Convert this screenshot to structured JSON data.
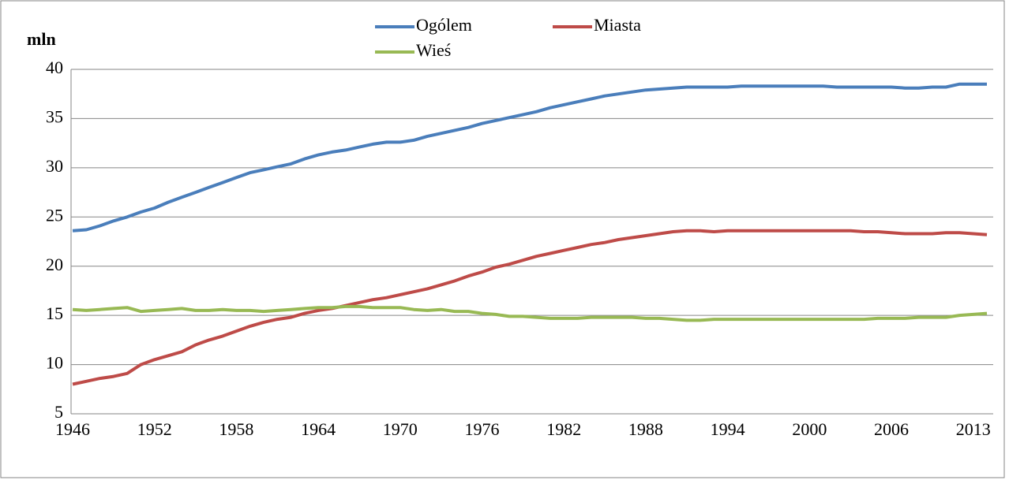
{
  "chart_data": {
    "type": "line",
    "ylabel": "mln",
    "legend": "top",
    "grid": true,
    "categories": [
      "1946",
      null,
      null,
      null,
      null,
      null,
      "1952",
      null,
      null,
      null,
      null,
      null,
      "1958",
      null,
      null,
      null,
      null,
      null,
      "1964",
      null,
      null,
      null,
      null,
      null,
      "1970",
      null,
      null,
      null,
      null,
      null,
      "1976",
      null,
      null,
      null,
      null,
      null,
      "1982",
      null,
      null,
      null,
      null,
      null,
      "1988",
      null,
      null,
      null,
      null,
      null,
      "1994",
      null,
      null,
      null,
      null,
      null,
      "2000",
      null,
      null,
      null,
      null,
      null,
      "2006",
      null,
      null,
      null,
      null,
      null,
      "2013",
      null
    ],
    "ylim": [
      5,
      40
    ],
    "yticks": [
      5,
      10,
      15,
      20,
      25,
      30,
      35,
      40
    ],
    "series": [
      {
        "name": "Ogólem",
        "color": "#4a7ebb",
        "values": [
          23.6,
          23.7,
          24.1,
          24.6,
          25.0,
          25.5,
          25.9,
          26.5,
          27.0,
          27.5,
          28.0,
          28.5,
          29.0,
          29.5,
          29.8,
          30.1,
          30.4,
          30.9,
          31.3,
          31.6,
          31.8,
          32.1,
          32.4,
          32.6,
          32.6,
          32.8,
          33.2,
          33.5,
          33.8,
          34.1,
          34.5,
          34.8,
          35.1,
          35.4,
          35.7,
          36.1,
          36.4,
          36.7,
          37.0,
          37.3,
          37.5,
          37.7,
          37.9,
          38.0,
          38.1,
          38.2,
          38.2,
          38.2,
          38.2,
          38.3,
          38.3,
          38.3,
          38.3,
          38.3,
          38.3,
          38.3,
          38.2,
          38.2,
          38.2,
          38.2,
          38.2,
          38.1,
          38.1,
          38.2,
          38.2,
          38.5,
          38.5,
          38.5
        ]
      },
      {
        "name": "Miasta",
        "color": "#be4b48",
        "values": [
          8.0,
          8.3,
          8.6,
          8.8,
          9.1,
          10.0,
          10.5,
          10.9,
          11.3,
          12.0,
          12.5,
          12.9,
          13.4,
          13.9,
          14.3,
          14.6,
          14.8,
          15.2,
          15.5,
          15.7,
          16.0,
          16.3,
          16.6,
          16.8,
          17.1,
          17.4,
          17.7,
          18.1,
          18.5,
          19.0,
          19.4,
          19.9,
          20.2,
          20.6,
          21.0,
          21.3,
          21.6,
          21.9,
          22.2,
          22.4,
          22.7,
          22.9,
          23.1,
          23.3,
          23.5,
          23.6,
          23.6,
          23.5,
          23.6,
          23.6,
          23.6,
          23.6,
          23.6,
          23.6,
          23.6,
          23.6,
          23.6,
          23.6,
          23.5,
          23.5,
          23.4,
          23.3,
          23.3,
          23.3,
          23.4,
          23.4,
          23.3,
          23.2
        ]
      },
      {
        "name": "Wieś",
        "color": "#98b954",
        "values": [
          15.6,
          15.5,
          15.6,
          15.7,
          15.8,
          15.4,
          15.5,
          15.6,
          15.7,
          15.5,
          15.5,
          15.6,
          15.5,
          15.5,
          15.4,
          15.5,
          15.6,
          15.7,
          15.8,
          15.8,
          15.9,
          15.9,
          15.8,
          15.8,
          15.8,
          15.6,
          15.5,
          15.6,
          15.4,
          15.4,
          15.2,
          15.1,
          14.9,
          14.9,
          14.8,
          14.7,
          14.7,
          14.7,
          14.8,
          14.8,
          14.8,
          14.8,
          14.7,
          14.7,
          14.6,
          14.5,
          14.5,
          14.6,
          14.6,
          14.6,
          14.6,
          14.6,
          14.6,
          14.6,
          14.6,
          14.6,
          14.6,
          14.6,
          14.6,
          14.7,
          14.7,
          14.7,
          14.8,
          14.8,
          14.8,
          15.0,
          15.1,
          15.2
        ]
      }
    ]
  }
}
